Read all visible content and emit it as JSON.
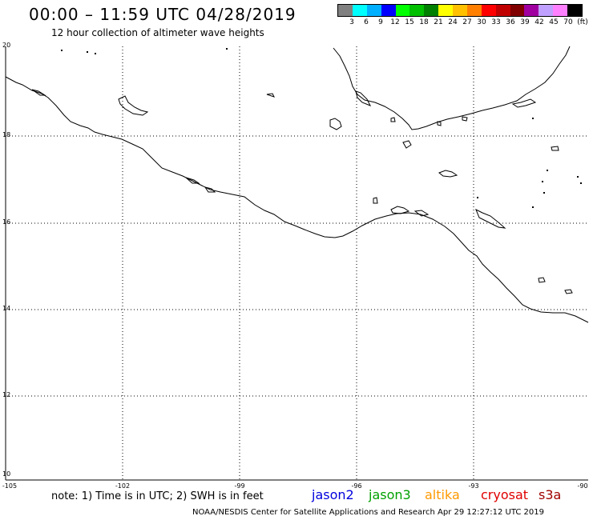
{
  "title": "00:00 – 11:59 UTC 04/28/2019",
  "subtitle": "12 hour collection of altimeter wave heights",
  "legend": {
    "colors": [
      "#808080",
      "#00ffff",
      "#00b0ff",
      "#0000ff",
      "#00ff00",
      "#00c000",
      "#008000",
      "#ffff00",
      "#ffc000",
      "#ff8000",
      "#ff0000",
      "#c00000",
      "#800000",
      "#a000a0",
      "#c0a0ff",
      "#ff80ff",
      "#000000"
    ],
    "labels": [
      "3",
      "6",
      "9",
      "12",
      "15",
      "18",
      "21",
      "24",
      "27",
      "30",
      "33",
      "36",
      "39",
      "42",
      "45",
      "70",
      "(ft)"
    ]
  },
  "lat_labels": [
    "20",
    "18",
    "16",
    "14",
    "12",
    "10"
  ],
  "lon_labels": [
    "-105",
    "-102",
    "-99",
    "-96",
    "-93",
    "-90"
  ],
  "note": "note: 1) Time is in UTC; 2) SWH is in feet",
  "satellites": [
    {
      "name": "jason2",
      "color": "#0000dd"
    },
    {
      "name": "jason3",
      "color": "#00a000"
    },
    {
      "name": "altika",
      "color": "#ff9900"
    },
    {
      "name": "cryosat",
      "color": "#e00000"
    },
    {
      "name": "s3a",
      "color": "#a00000"
    }
  ],
  "footer": "NOAA/NESDIS Center for Satellite Applications and Research   Apr 29 12:27:12 UTC 2019"
}
